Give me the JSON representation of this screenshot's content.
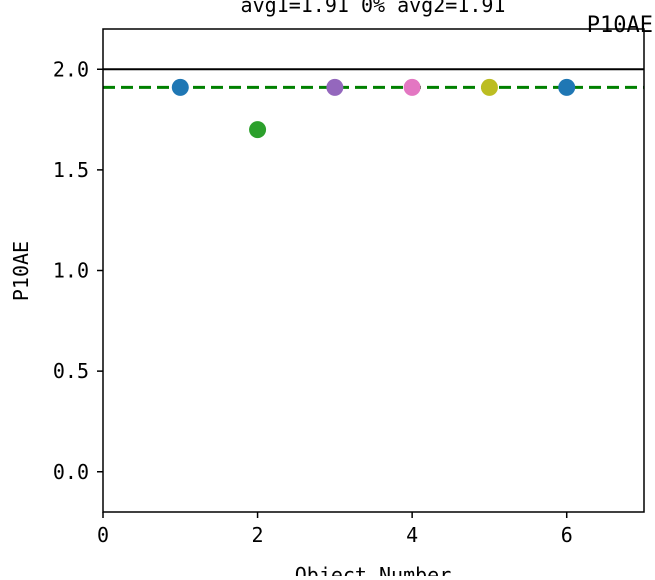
{
  "chart_data": {
    "type": "scatter",
    "title": "avg1=1.91 0% avg2=1.91",
    "corner_label": "P10AE",
    "xlabel": "Object Number",
    "ylabel": "P10AE",
    "xlim": [
      0,
      7
    ],
    "ylim": [
      -0.2,
      2.2
    ],
    "xticks": [
      0,
      2,
      4,
      6
    ],
    "xtick_labels": [
      "0",
      "2",
      "4",
      "6"
    ],
    "yticks": [
      0.0,
      0.5,
      1.0,
      1.5,
      2.0
    ],
    "ytick_labels": [
      "0.0",
      "0.5",
      "1.0",
      "1.5",
      "2.0"
    ],
    "grid": false,
    "points": [
      {
        "x": 1,
        "y": 1.91,
        "color": "#1f77b4"
      },
      {
        "x": 2,
        "y": 1.7,
        "color": "#2ca02c"
      },
      {
        "x": 3,
        "y": 1.91,
        "color": "#9467bd"
      },
      {
        "x": 4,
        "y": 1.91,
        "color": "#e377c2"
      },
      {
        "x": 5,
        "y": 1.91,
        "color": "#bcbd22"
      },
      {
        "x": 6,
        "y": 1.91,
        "color": "#1f77b4"
      }
    ],
    "reference_lines": [
      {
        "y": 2.0,
        "color": "#000000",
        "style": "solid"
      },
      {
        "y": 1.91,
        "color": "#008000",
        "style": "dashed"
      }
    ]
  }
}
